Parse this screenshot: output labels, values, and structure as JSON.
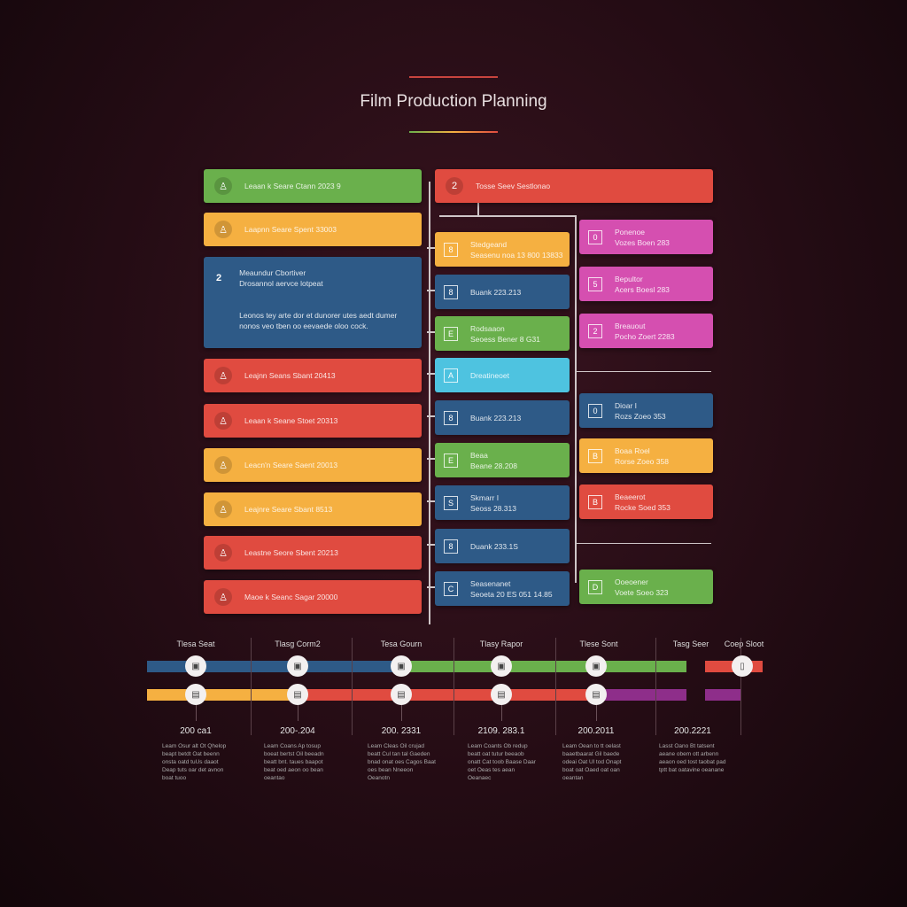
{
  "title": "Film Production Planning",
  "colors": {
    "green": "#6ab04c",
    "yellow": "#f5b041",
    "blue": "#2e5a87",
    "red": "#e04b40",
    "cyan": "#4ec3e0",
    "pink": "#d54fb0",
    "purple": "#8e2e8a"
  },
  "left": [
    {
      "color": "green",
      "icon": "person-icon",
      "text": "Leaan k Seare Ctann 2023 9"
    },
    {
      "color": "yellow",
      "icon": "person-icon",
      "text": "Laapnn Seare Spent 33003"
    },
    {
      "color": "blue",
      "icon": "number-icon",
      "num": "2",
      "title": "Meaundur Cbortiver",
      "subtitle": "Drosannol aervce lotpeat",
      "body": "Leonos tey arte dor et dunorer utes aedt dumer nonos veo tben oo eevaede oloo cock."
    },
    {
      "color": "red",
      "icon": "person-icon",
      "text": "Leajnn Seans Sbant 20413"
    },
    {
      "color": "red",
      "icon": "person-icon",
      "text": "Leaan k Seane Stoet 20313"
    },
    {
      "color": "yellow",
      "icon": "person-icon",
      "text": "Leacn'n Seare Saent 20013"
    },
    {
      "color": "yellow",
      "icon": "person-icon",
      "text": "Leajnre Seare Sbant 8513"
    },
    {
      "color": "red",
      "icon": "person-icon",
      "text": "Leastne Seore Sbent 20213"
    },
    {
      "color": "red",
      "icon": "person-icon",
      "text": "Maoe k Seanc Sagar 20000"
    }
  ],
  "header": {
    "num": "2",
    "text": "Tosse Seev Sestlonao"
  },
  "middle": [
    {
      "color": "yellow",
      "glyph": "8",
      "l1": "Stedgeand",
      "l2": "Seasenu noa 13 800 13833"
    },
    {
      "color": "blue",
      "glyph": "8",
      "l1": "Buank 223.213",
      "l2": ""
    },
    {
      "color": "green",
      "glyph": "E",
      "l1": "Rodsaaon",
      "l2": "Seoess Bener 8 G31"
    },
    {
      "color": "cyan",
      "glyph": "A",
      "l1": "Dreatineoet",
      "l2": ""
    },
    {
      "color": "blue",
      "glyph": "8",
      "l1": "Buank 223.213",
      "l2": ""
    },
    {
      "color": "green",
      "glyph": "E",
      "l1": "Beaa",
      "l2": "Beane 28.208"
    },
    {
      "color": "blue",
      "glyph": "S",
      "l1": "Skmarr I",
      "l2": "Seoss 28.313"
    },
    {
      "color": "blue",
      "glyph": "8",
      "l1": "Duank 233.1S",
      "l2": ""
    },
    {
      "color": "blue",
      "glyph": "C",
      "l1": "Seasenanet",
      "l2": "Seoeta 20 ES 051 14.85"
    }
  ],
  "right": [
    {
      "color": "pink",
      "glyph": "0",
      "l1": "Ponenoe",
      "l2": "Vozes Boen 283"
    },
    {
      "color": "pink",
      "glyph": "5",
      "l1": "Bepultor",
      "l2": "Acers Boesl 283"
    },
    {
      "color": "pink",
      "glyph": "2",
      "l1": "Breauout",
      "l2": "Pocho Zoert 2283"
    },
    {
      "color": "blue",
      "glyph": "0",
      "l1": "Dioar I",
      "l2": "Rozs Zoeo 353"
    },
    {
      "color": "yellow",
      "glyph": "B",
      "l1": "Boaa Roel",
      "l2": "Rorse Zoeo 358"
    },
    {
      "color": "red",
      "glyph": "B",
      "l1": "Beaeerot",
      "l2": "Rocke Soed 353"
    },
    {
      "color": "green",
      "glyph": "D",
      "l1": "Ooeoener",
      "l2": "Voete Soeo 323"
    }
  ],
  "timeline": {
    "labels": [
      "Tlesa Seat",
      "Tlasg Corm2",
      "Tesa Gourn",
      "Tlasy Rapor",
      "Tlese Sont",
      "Tasg Seer",
      "Coep Sloot"
    ],
    "dates": [
      "200 ca1",
      "200-.204",
      "200. 2331",
      "2109. 283.1",
      "200.2011",
      "200.2221"
    ],
    "descs": [
      "Leam Osur alt Ot Qhelop beapt betdt Oat beenn onsta oatd tuUs daaot Deap tuts oar det avnon boat tuoo",
      "Leam Coans Ap tosup boeat bertst Oil beeadn beatt bnt. taues baapot beat oed aeon oo bean oeantao",
      "Leam Cleas Oil crujad beatt Cul tan tal Gaeden bnad onat oes Cagos Baat oes bean Nneeon Oeanotn",
      "Leam Coants Ob redup beatt oat tutur beeaob onatt Cat toob Baase Daar oet Oeas tes aean Oeanaec",
      "Leam Oean to tt oelast baaetbaarat Gil baede odeai Oat Ul tod Onapt boat oat Oaed oat oan oeantan",
      "Lasst Oano Bt tatsent aeane obem ott arbenn aeaon oed tost taobat pad tptt bat oatavine oeanane"
    ],
    "icons": [
      "clapper-icon",
      "camera-icon",
      "film-icon",
      "script-icon",
      "calendar-icon",
      "costume-icon"
    ]
  }
}
